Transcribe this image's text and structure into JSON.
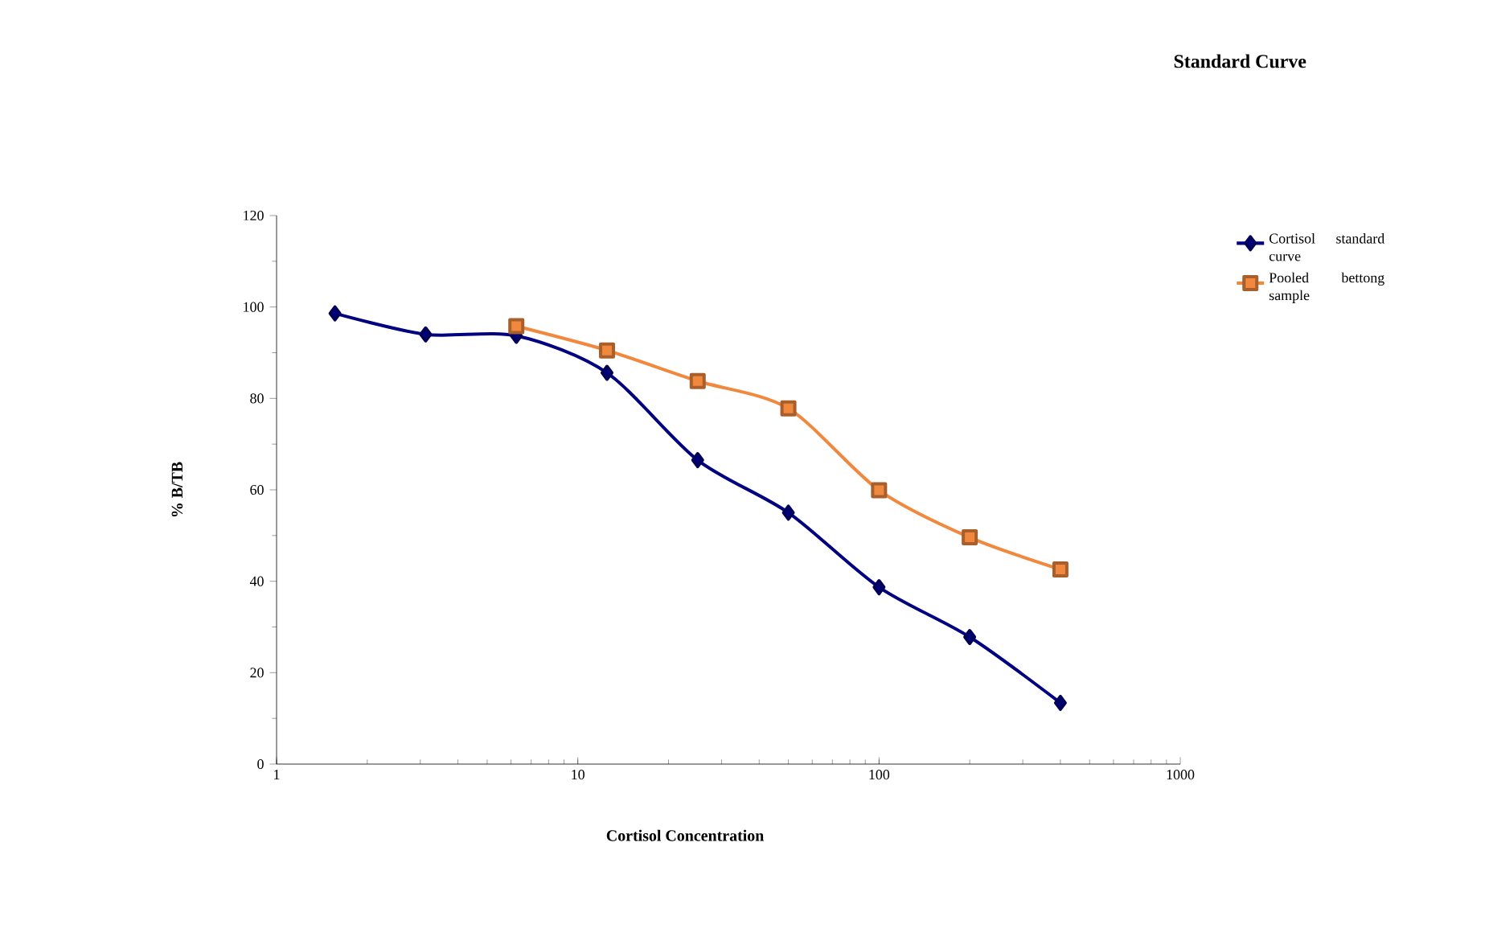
{
  "chart_data": {
    "type": "line",
    "title": "Standard Curve",
    "xlabel": "Cortisol Concentration",
    "ylabel": "% B/TB",
    "log": "x",
    "xlim": [
      1,
      1000
    ],
    "xticks": [
      1,
      10,
      100,
      1000
    ],
    "ylim": [
      0,
      120
    ],
    "yticks": [
      0,
      20,
      40,
      60,
      80,
      100,
      120
    ],
    "grid": false,
    "legend": "top right",
    "series": [
      {
        "name": "Cortisol standard curve",
        "color": "#000080",
        "marker": "diamond",
        "x": [
          1.5625,
          3.125,
          6.25,
          12.5,
          25,
          50,
          100,
          200,
          400
        ],
        "values": [
          98.6,
          94,
          93.7,
          85.6,
          66.5,
          55,
          38.7,
          27.8,
          13.4
        ]
      },
      {
        "name": "Pooled bettong sample",
        "color": "#f0883e",
        "marker": "square",
        "x": [
          6.25,
          12.5,
          25,
          50,
          100,
          200,
          400
        ],
        "values": [
          95.8,
          90.5,
          83.8,
          77.8,
          59.9,
          49.6,
          42.6
        ]
      }
    ]
  }
}
